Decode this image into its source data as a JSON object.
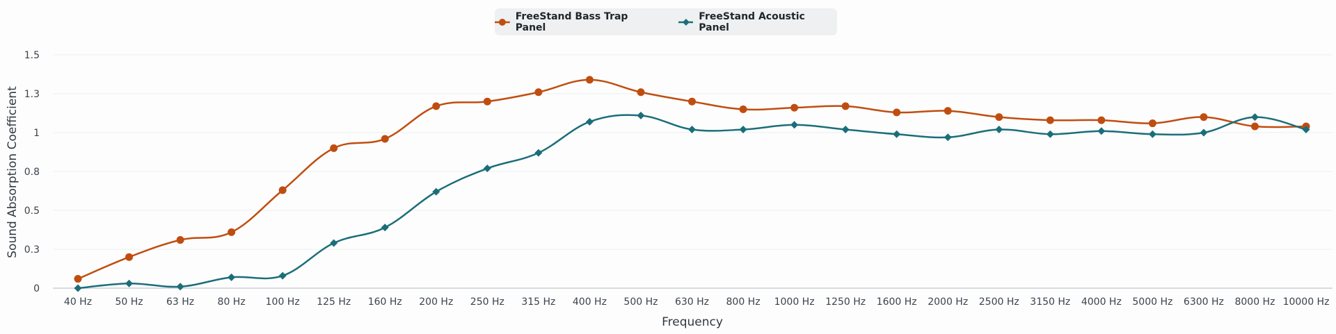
{
  "legend": {
    "items": [
      {
        "label": "FreeStand Bass Trap Panel",
        "color": "#c04d10",
        "marker": "circle"
      },
      {
        "label": "FreeStand Acoustic Panel",
        "color": "#1b6e79",
        "marker": "diamond"
      }
    ]
  },
  "axes": {
    "x_title": "Frequency",
    "y_title": "Sound Absorption Coefficient",
    "y_tick_labels": [
      "0",
      "0.3",
      "0.5",
      "0.8",
      "1",
      "1.3",
      "1.5"
    ]
  },
  "chart_data": {
    "type": "line",
    "title": "",
    "xlabel": "Frequency",
    "ylabel": "Sound Absorption Coefficient",
    "ylim": [
      0,
      1.5
    ],
    "y_ticks": [
      0,
      0.25,
      0.5,
      0.75,
      1,
      1.25,
      1.5
    ],
    "y_tick_labels": [
      "0",
      "0.3",
      "0.5",
      "0.8",
      "1",
      "1.3",
      "1.5"
    ],
    "grid": true,
    "legend_position": "top-center",
    "smooth": true,
    "categories": [
      "40 Hz",
      "50 Hz",
      "63 Hz",
      "80 Hz",
      "100 Hz",
      "125 Hz",
      "160 Hz",
      "200 Hz",
      "250 Hz",
      "315 Hz",
      "400 Hz",
      "500 Hz",
      "630 Hz",
      "800 Hz",
      "1000 Hz",
      "1250 Hz",
      "1600 Hz",
      "2000 Hz",
      "2500 Hz",
      "3150 Hz",
      "4000 Hz",
      "5000 Hz",
      "6300 Hz",
      "8000 Hz",
      "10000 Hz"
    ],
    "series": [
      {
        "name": "FreeStand Bass Trap Panel",
        "color": "#c04d10",
        "marker": "circle",
        "values": [
          0.06,
          0.2,
          0.31,
          0.36,
          0.63,
          0.9,
          0.96,
          1.17,
          1.2,
          1.26,
          1.34,
          1.26,
          1.2,
          1.15,
          1.16,
          1.17,
          1.13,
          1.14,
          1.1,
          1.08,
          1.08,
          1.06,
          1.1,
          1.04,
          1.04
        ]
      },
      {
        "name": "FreeStand Acoustic Panel",
        "color": "#1b6e79",
        "marker": "diamond",
        "values": [
          0.0,
          0.03,
          0.01,
          0.07,
          0.08,
          0.29,
          0.39,
          0.62,
          0.77,
          0.87,
          1.07,
          1.11,
          1.02,
          1.02,
          1.05,
          1.02,
          0.99,
          0.97,
          1.02,
          0.99,
          1.01,
          0.99,
          1.0,
          1.1,
          1.02
        ]
      }
    ]
  }
}
